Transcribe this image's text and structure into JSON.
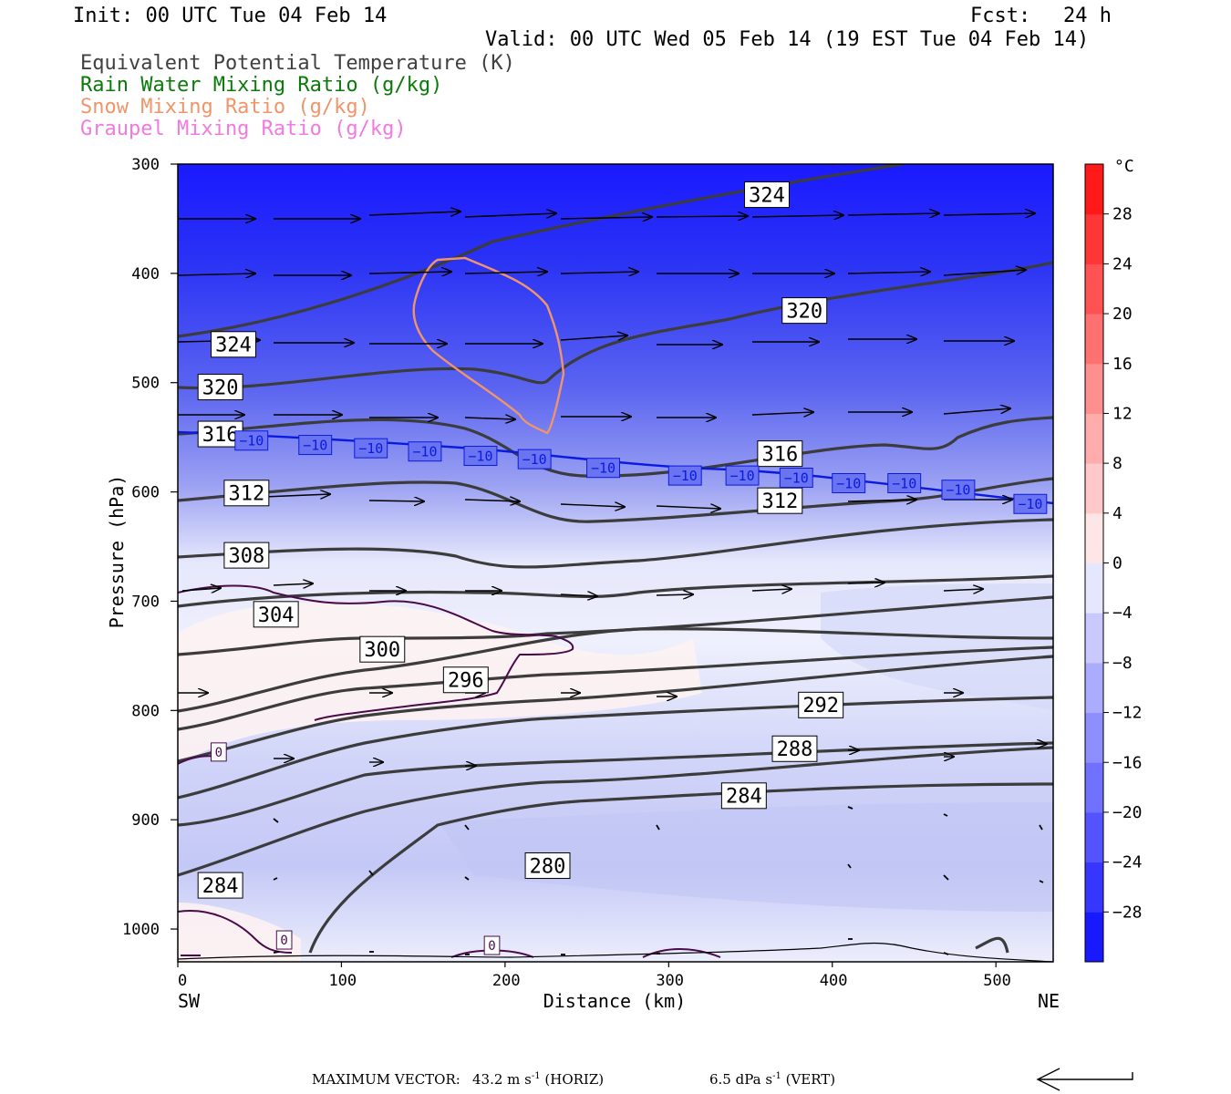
{
  "header": {
    "init": "Init: 00 UTC Tue 04 Feb 14",
    "fcst_label": "Fcst:",
    "fcst_value": "24 h",
    "valid": "Valid: 00 UTC Wed 05 Feb 14 (19 EST Tue 04 Feb 14)"
  },
  "legend_lines": [
    {
      "text": "Equivalent Potential Temperature (K)",
      "color": "#404040"
    },
    {
      "text": "Rain Water Mixing Ratio (g/kg)",
      "color": "#0a7a0a"
    },
    {
      "text": "Snow Mixing Ratio (g/kg)",
      "color": "#f0946a"
    },
    {
      "text": "Graupel Mixing Ratio (g/kg)",
      "color": "#f07ae0"
    }
  ],
  "footer": {
    "label": "MAXIMUM VECTOR:",
    "horiz_value": "43.2 m s",
    "horiz_exp": "-1",
    "horiz_unit": "(HORIZ)",
    "vert_value": "6.5 dPa s",
    "vert_exp": "-1",
    "vert_unit": "(VERT)"
  },
  "chart_data": {
    "type": "cross-section",
    "xlabel": "Distance (km)",
    "ylabel": "Pressure (hPa)",
    "x_left_label": "SW",
    "x_right_label": "NE",
    "xlim": [
      0,
      535
    ],
    "ylim": [
      1030,
      300
    ],
    "x_ticks": [
      0,
      100,
      200,
      300,
      400,
      500
    ],
    "y_ticks": [
      300,
      400,
      500,
      600,
      700,
      800,
      900,
      1000
    ],
    "colorbar": {
      "unit": "°C",
      "range": [
        -32,
        32
      ],
      "labels": [
        28,
        24,
        20,
        16,
        12,
        8,
        4,
        0,
        -4,
        -8,
        -12,
        -16,
        -20,
        -24,
        -28
      ]
    },
    "theta_e_labels": [
      {
        "text": "324",
        "x": 34,
        "p": 465
      },
      {
        "text": "324",
        "x": 360,
        "p": 328
      },
      {
        "text": "320",
        "x": 26,
        "p": 504
      },
      {
        "text": "320",
        "x": 383,
        "p": 434
      },
      {
        "text": "316",
        "x": 26,
        "p": 547
      },
      {
        "text": "316",
        "x": 368,
        "p": 565
      },
      {
        "text": "312",
        "x": 42,
        "p": 601
      },
      {
        "text": "312",
        "x": 368,
        "p": 608
      },
      {
        "text": "308",
        "x": 42,
        "p": 658
      },
      {
        "text": "304",
        "x": 60,
        "p": 712
      },
      {
        "text": "300",
        "x": 125,
        "p": 744
      },
      {
        "text": "296",
        "x": 176,
        "p": 772
      },
      {
        "text": "292",
        "x": 393,
        "p": 795
      },
      {
        "text": "288",
        "x": 377,
        "p": 835
      },
      {
        "text": "284",
        "x": 346,
        "p": 878
      },
      {
        "text": "284",
        "x": 26,
        "p": 960
      },
      {
        "text": "280",
        "x": 226,
        "p": 942
      }
    ],
    "temp_m10_labels": [
      {
        "text": "−10",
        "x": 45,
        "p": 553
      },
      {
        "text": "−10",
        "x": 84,
        "p": 557
      },
      {
        "text": "−10",
        "x": 118,
        "p": 560
      },
      {
        "text": "−10",
        "x": 151,
        "p": 563
      },
      {
        "text": "−10",
        "x": 185,
        "p": 567
      },
      {
        "text": "−10",
        "x": 218,
        "p": 570
      },
      {
        "text": "−10",
        "x": 260,
        "p": 578
      },
      {
        "text": "−10",
        "x": 310,
        "p": 585
      },
      {
        "text": "−10",
        "x": 345,
        "p": 585
      },
      {
        "text": "−10",
        "x": 378,
        "p": 587
      },
      {
        "text": "−10",
        "x": 410,
        "p": 592
      },
      {
        "text": "−10",
        "x": 444,
        "p": 592
      },
      {
        "text": "−10",
        "x": 477,
        "p": 598
      },
      {
        "text": "−10",
        "x": 521,
        "p": 611
      }
    ],
    "zero_labels": [
      {
        "text": "0",
        "x": 25,
        "p": 838
      },
      {
        "text": "0",
        "x": 65,
        "p": 1010
      },
      {
        "text": "0",
        "x": 192,
        "p": 1015
      }
    ]
  }
}
